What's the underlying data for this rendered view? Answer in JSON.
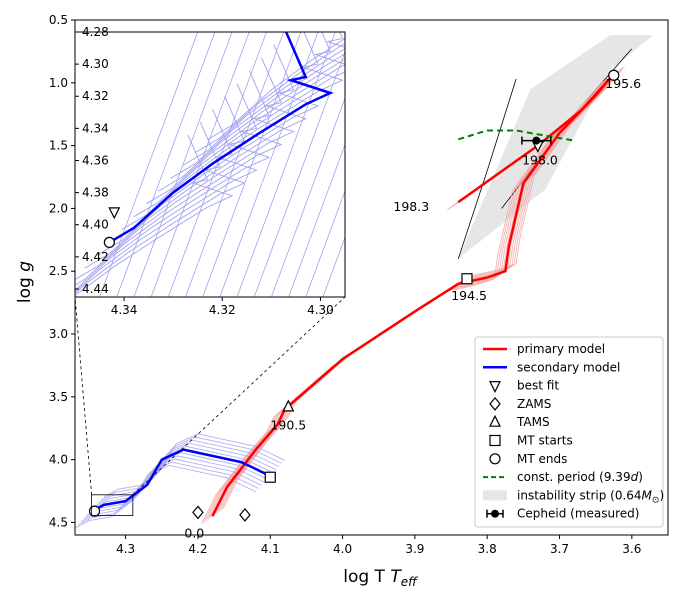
{
  "chart_data": {
    "type": "line",
    "title": "",
    "xlabel_main": "log T",
    "xlabel_sub": "eff",
    "ylabel_main": "log ",
    "ylabel_italic": "g",
    "xlim": [
      4.37,
      3.55
    ],
    "ylim": [
      4.6,
      0.5
    ],
    "xticks": [
      "4.3",
      "4.2",
      "4.1",
      "4.0",
      "3.9",
      "3.8",
      "3.7",
      "3.6"
    ],
    "yticks": [
      "0.5",
      "1.0",
      "1.5",
      "2.0",
      "2.5",
      "3.0",
      "3.5",
      "4.0",
      "4.5"
    ],
    "series": [
      {
        "name": "primary model",
        "color": "#ff0000",
        "points": [
          [
            4.18,
            4.45
          ],
          [
            4.16,
            4.22
          ],
          [
            4.12,
            3.92
          ],
          [
            4.09,
            3.72
          ],
          [
            4.08,
            3.6
          ],
          [
            4.0,
            3.2
          ],
          [
            3.9,
            2.82
          ],
          [
            3.84,
            2.6
          ],
          [
            3.8,
            2.55
          ],
          [
            3.775,
            2.5
          ],
          [
            3.77,
            2.3
          ],
          [
            3.75,
            1.8
          ],
          [
            3.7,
            1.4
          ],
          [
            3.65,
            1.1
          ],
          [
            3.625,
            0.93
          ],
          [
            3.67,
            1.22
          ],
          [
            3.73,
            1.5
          ],
          [
            3.84,
            1.95
          ]
        ]
      },
      {
        "name": "secondary model",
        "color": "#0000ff",
        "points": [
          [
            4.35,
            4.42
          ],
          [
            4.33,
            4.36
          ],
          [
            4.3,
            4.33
          ],
          [
            4.27,
            4.2
          ],
          [
            4.25,
            4.0
          ],
          [
            4.22,
            3.92
          ],
          [
            4.18,
            3.97
          ],
          [
            4.14,
            4.02
          ],
          [
            4.1,
            4.13
          ]
        ]
      }
    ],
    "markers": [
      {
        "name": "best fit",
        "symbol": "triangle-down",
        "x": 3.73,
        "y": 1.5
      },
      {
        "name": "ZAMS",
        "symbol": "diamond",
        "x": 4.2,
        "y": 4.42
      },
      {
        "name": "ZAMS",
        "symbol": "diamond",
        "x": 4.135,
        "y": 4.44
      },
      {
        "name": "TAMS",
        "symbol": "triangle-up",
        "x": 4.075,
        "y": 3.58
      },
      {
        "name": "MT starts",
        "symbol": "square",
        "x": 3.828,
        "y": 2.56
      },
      {
        "name": "MT starts",
        "symbol": "square",
        "x": 4.1,
        "y": 4.14
      },
      {
        "name": "MT ends",
        "symbol": "circle",
        "x": 3.625,
        "y": 0.94
      },
      {
        "name": "MT ends",
        "symbol": "circle",
        "x": 4.343,
        "y": 4.41
      }
    ],
    "cepheid": {
      "x": 3.732,
      "y": 1.46,
      "xerr": 0.02
    },
    "const_period": [
      [
        3.84,
        1.45
      ],
      [
        3.8,
        1.38
      ],
      [
        3.76,
        1.38
      ],
      [
        3.72,
        1.42
      ],
      [
        3.68,
        1.46
      ]
    ],
    "instability_strip": [
      [
        3.84,
        2.4
      ],
      [
        3.72,
        1.85
      ],
      [
        3.63,
        0.9
      ],
      [
        3.57,
        0.62
      ],
      [
        3.63,
        0.62
      ],
      [
        3.74,
        1.05
      ]
    ],
    "annotations": [
      {
        "text": "195.6",
        "x": 3.612,
        "y": 1.04
      },
      {
        "text": "198.0",
        "x": 3.727,
        "y": 1.65
      },
      {
        "text": "198.3",
        "x": 3.905,
        "y": 2.02
      },
      {
        "text": "194.5",
        "x": 3.825,
        "y": 2.73
      },
      {
        "text": "190.5",
        "x": 4.075,
        "y": 3.76
      },
      {
        "text": "0.0",
        "x": 4.205,
        "y": 4.62
      }
    ],
    "inset": {
      "xlim": [
        4.35,
        4.295
      ],
      "ylim": [
        4.445,
        4.28
      ],
      "xticks": [
        "4.34",
        "4.32",
        "4.30"
      ],
      "yticks": [
        "4.28",
        "4.30",
        "4.32",
        "4.34",
        "4.36",
        "4.38",
        "4.40",
        "4.42",
        "4.44"
      ],
      "track": [
        [
          4.343,
          4.411
        ],
        [
          4.338,
          4.402
        ],
        [
          4.33,
          4.38
        ],
        [
          4.322,
          4.362
        ],
        [
          4.313,
          4.344
        ],
        [
          4.303,
          4.325
        ],
        [
          4.298,
          4.318
        ],
        [
          4.306,
          4.31
        ],
        [
          4.303,
          4.308
        ],
        [
          4.307,
          4.28
        ]
      ],
      "best_fit": {
        "x": 4.342,
        "y": 4.392
      },
      "mt_end": {
        "x": 4.343,
        "y": 4.411
      }
    },
    "legend": {
      "placement": "lower-right",
      "items": [
        {
          "label": "primary model",
          "kind": "line",
          "color": "#ff0000"
        },
        {
          "label": "secondary model",
          "kind": "line",
          "color": "#0000ff"
        },
        {
          "label": "best fit",
          "kind": "triangle-down"
        },
        {
          "label": "ZAMS",
          "kind": "diamond"
        },
        {
          "label": "TAMS",
          "kind": "triangle-up"
        },
        {
          "label": "MT starts",
          "kind": "square"
        },
        {
          "label": "MT ends",
          "kind": "circle"
        },
        {
          "label": "const. period (9.39",
          "label_italic": "d",
          "label_end": ")",
          "kind": "dashed",
          "color": "#008000"
        },
        {
          "label": "instability strip (0.64",
          "label_italic": "M",
          "label_sub": "⊙",
          "label_end": ")",
          "kind": "patch",
          "color": "#e6e6e6"
        },
        {
          "label": "Cepheid (measured)",
          "kind": "errorbar"
        }
      ]
    }
  }
}
